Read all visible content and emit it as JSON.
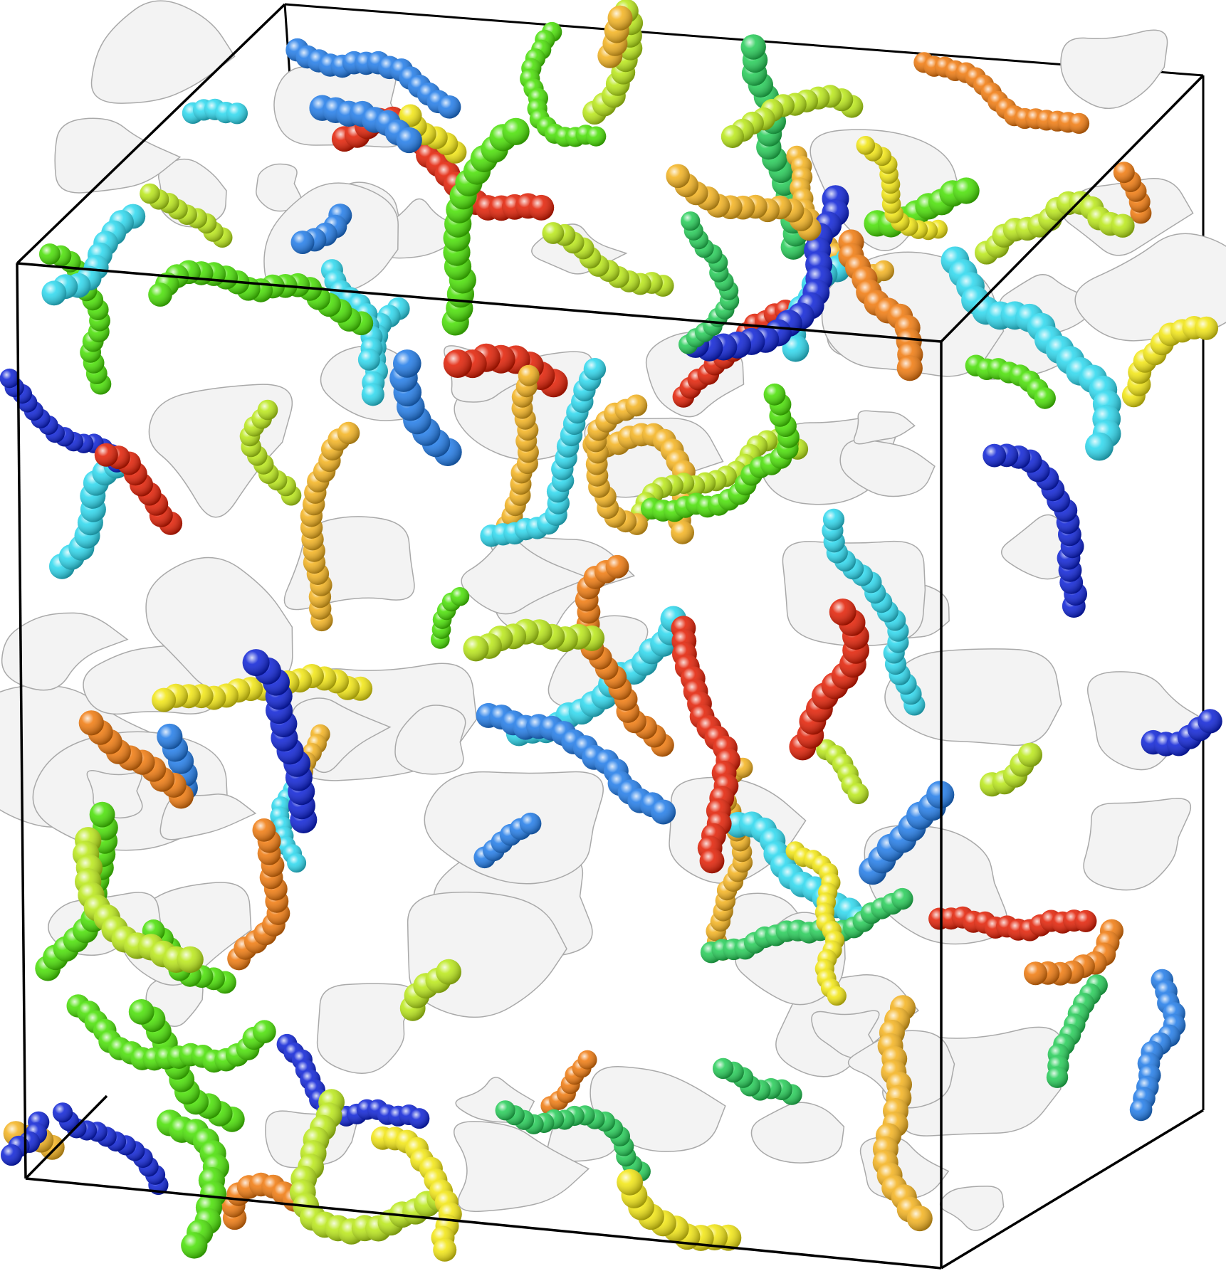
{
  "scene": {
    "subject": "simulation-box-with-porous-surface-and-bead-chains",
    "colors": {
      "background": "#ffffff",
      "box_edge": "#000000",
      "surface": "#f3f3f3",
      "surface_shade": "#a9a9a9",
      "bead_palette": [
        "#0a1fd6",
        "#1e7ae8",
        "#2ad8ee",
        "#22cc55",
        "#46e000",
        "#b9e815",
        "#f2e60f",
        "#f4b21c",
        "#f0780a",
        "#e21b00"
      ]
    }
  }
}
